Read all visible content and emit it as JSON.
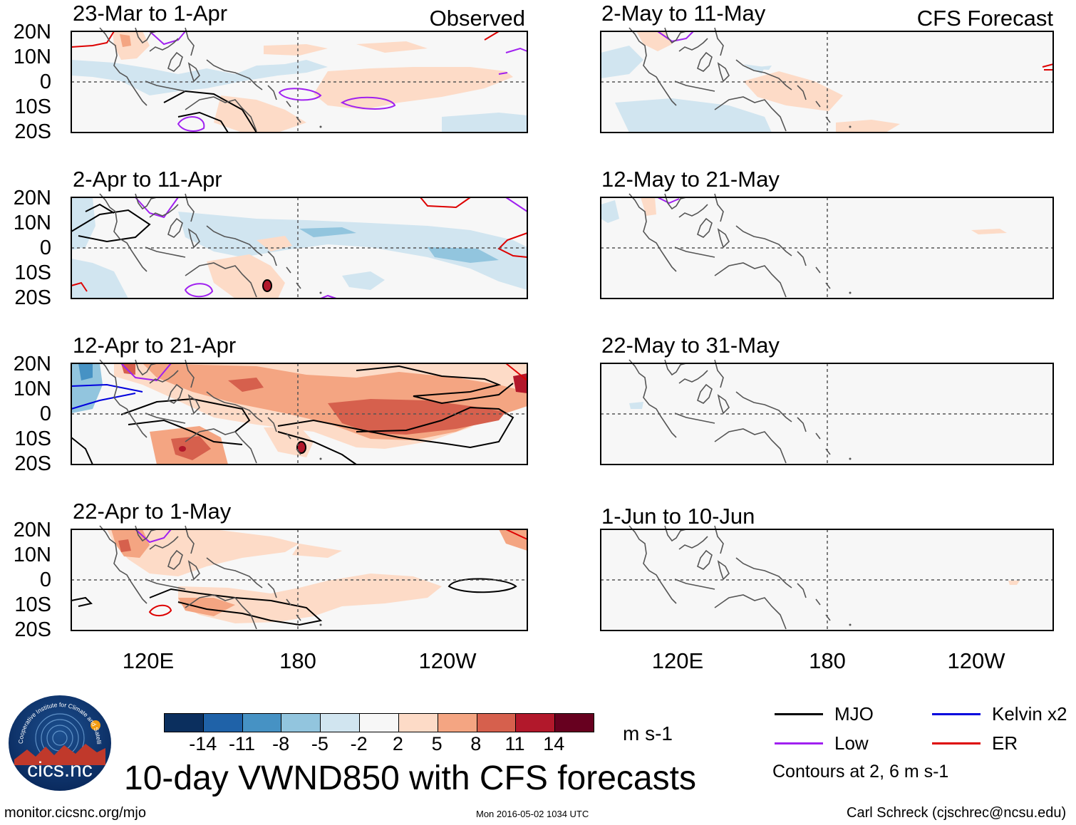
{
  "header": {
    "left_tag": "Observed",
    "right_tag": "CFS Forecast"
  },
  "panels_observed": [
    {
      "title": "23-Mar to 1-Apr"
    },
    {
      "title": "2-Apr to 11-Apr"
    },
    {
      "title": "12-Apr to 21-Apr"
    },
    {
      "title": "22-Apr to 1-May"
    }
  ],
  "panels_forecast": [
    {
      "title": "2-May to 11-May"
    },
    {
      "title": "12-May to 21-May"
    },
    {
      "title": "22-May to 31-May"
    },
    {
      "title": "1-Jun to 10-Jun"
    }
  ],
  "lat_labels": [
    "20N",
    "10N",
    "0",
    "10S",
    "20S"
  ],
  "lon_labels": [
    "120E",
    "180",
    "120W"
  ],
  "colorbar": {
    "ticks": [
      "-14",
      "-11",
      "-8",
      "-5",
      "-2",
      "2",
      "5",
      "8",
      "11",
      "14"
    ],
    "colors": [
      "#0b2f5e",
      "#1f62a8",
      "#4692c4",
      "#92c5de",
      "#d1e5f0",
      "#f7f7f7",
      "#fddbc7",
      "#f4a582",
      "#d6604d",
      "#b2182b",
      "#67001f"
    ],
    "unit": "m s-1"
  },
  "legend": {
    "items": [
      {
        "label": "MJO",
        "color": "#000000"
      },
      {
        "label": "Kelvin x2",
        "color": "#0000dd"
      },
      {
        "label": "Low",
        "color": "#a020f0"
      },
      {
        "label": "ER",
        "color": "#dd0000"
      }
    ],
    "note": "Contours at 2, 6 m s-1"
  },
  "main_title": "10-day VWND850 with CFS forecasts",
  "logo_text": "cics.nc",
  "logo_ring_text": "Cooperative Institute for Climate and Satellites",
  "footer": {
    "url": "monitor.cicsnc.org/mjo",
    "timestamp": "Mon 2016-05-02 1034 UTC",
    "author": "Carl Schreck (cjschrec@ncsu.edu)"
  }
}
